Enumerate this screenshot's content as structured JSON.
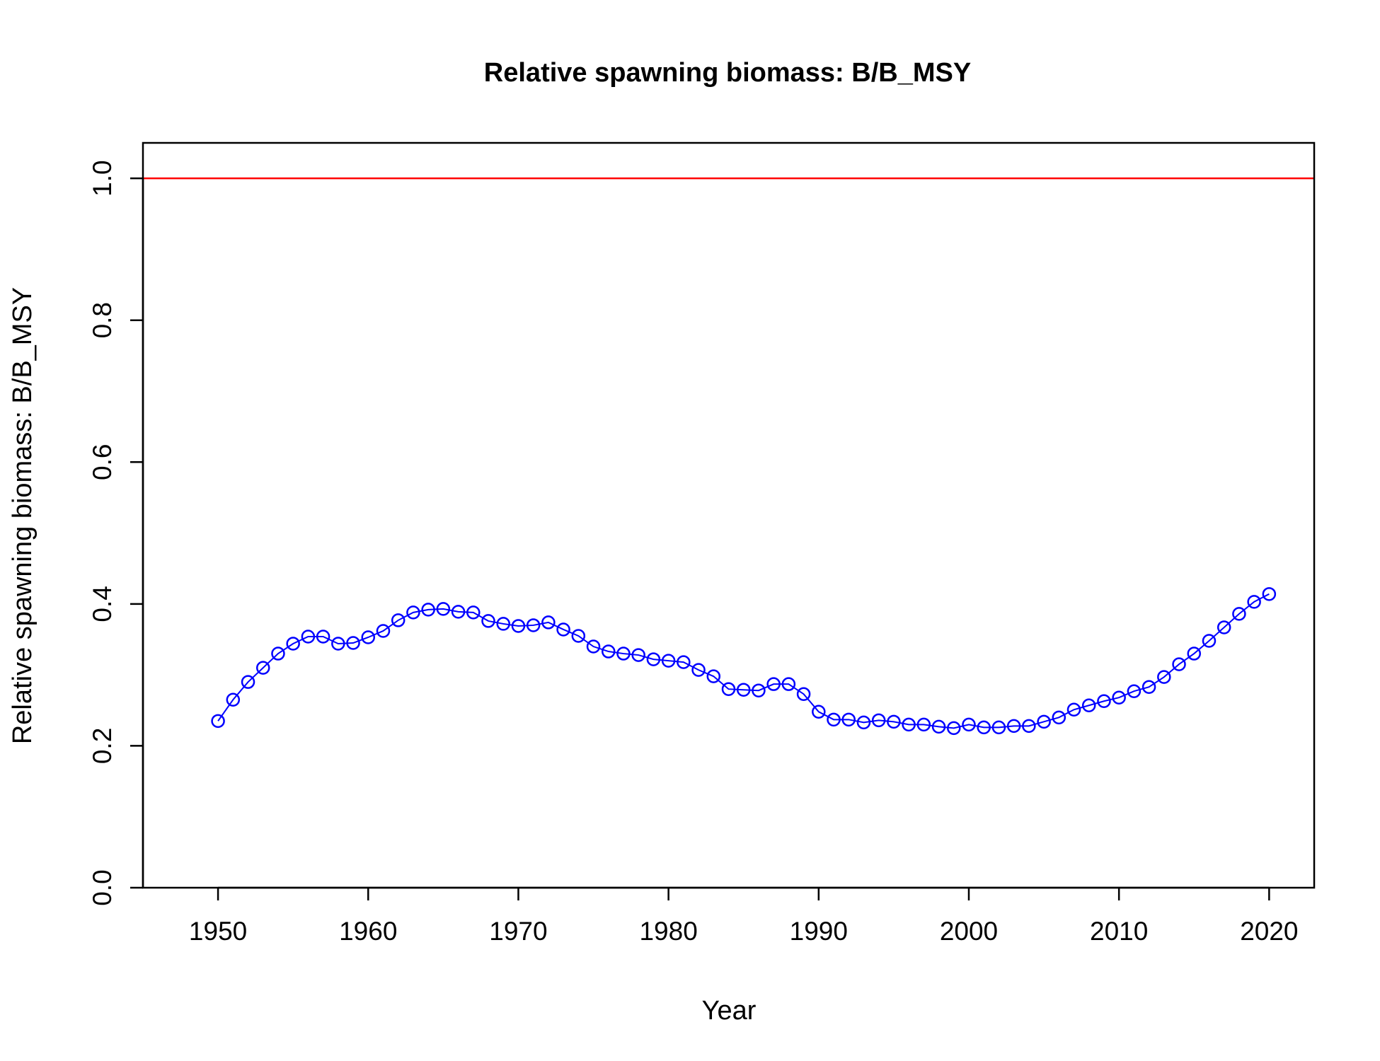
{
  "chart_data": {
    "type": "line",
    "title": "Relative spawning biomass: B/B_MSY",
    "xlabel": "Year",
    "ylabel": "Relative spawning biomass: B/B_MSY",
    "xlim": [
      1945,
      2023
    ],
    "ylim": [
      0,
      1.05
    ],
    "x_ticks": [
      1950,
      1960,
      1970,
      1980,
      1990,
      2000,
      2010,
      2020
    ],
    "x_tick_labels": [
      "1950",
      "1960",
      "1970",
      "1980",
      "1990",
      "2000",
      "2010",
      "2020"
    ],
    "y_ticks": [
      0,
      0.2,
      0.4,
      0.6,
      0.8,
      1.0
    ],
    "y_tick_labels": [
      "0.0",
      "0.2",
      "0.4",
      "0.6",
      "0.8",
      "1.0"
    ],
    "grid": false,
    "reference_line": {
      "y": 1.0,
      "color": "#ff0000"
    },
    "series": [
      {
        "color": "#0000ff",
        "marker": "open-circle",
        "x": [
          1950,
          1951,
          1952,
          1953,
          1954,
          1955,
          1956,
          1957,
          1958,
          1959,
          1960,
          1961,
          1962,
          1963,
          1964,
          1965,
          1966,
          1967,
          1968,
          1969,
          1970,
          1971,
          1972,
          1973,
          1974,
          1975,
          1976,
          1977,
          1978,
          1979,
          1980,
          1981,
          1982,
          1983,
          1984,
          1985,
          1986,
          1987,
          1988,
          1989,
          1990,
          1991,
          1992,
          1993,
          1994,
          1995,
          1996,
          1997,
          1998,
          1999,
          2000,
          2001,
          2002,
          2003,
          2004,
          2005,
          2006,
          2007,
          2008,
          2009,
          2010,
          2011,
          2012,
          2013,
          2014,
          2015,
          2016,
          2017,
          2018,
          2019,
          2020
        ],
        "values": [
          0.235,
          0.265,
          0.29,
          0.31,
          0.33,
          0.344,
          0.354,
          0.354,
          0.344,
          0.345,
          0.353,
          0.362,
          0.377,
          0.388,
          0.392,
          0.393,
          0.389,
          0.388,
          0.376,
          0.372,
          0.369,
          0.37,
          0.374,
          0.364,
          0.355,
          0.34,
          0.333,
          0.33,
          0.328,
          0.322,
          0.32,
          0.318,
          0.307,
          0.298,
          0.28,
          0.279,
          0.278,
          0.287,
          0.287,
          0.273,
          0.248,
          0.237,
          0.237,
          0.233,
          0.236,
          0.234,
          0.23,
          0.23,
          0.227,
          0.225,
          0.23,
          0.226,
          0.226,
          0.228,
          0.228,
          0.234,
          0.24,
          0.251,
          0.257,
          0.263,
          0.268,
          0.277,
          0.283,
          0.297,
          0.315,
          0.33,
          0.348,
          0.367,
          0.386,
          0.403,
          0.414
        ]
      }
    ]
  }
}
